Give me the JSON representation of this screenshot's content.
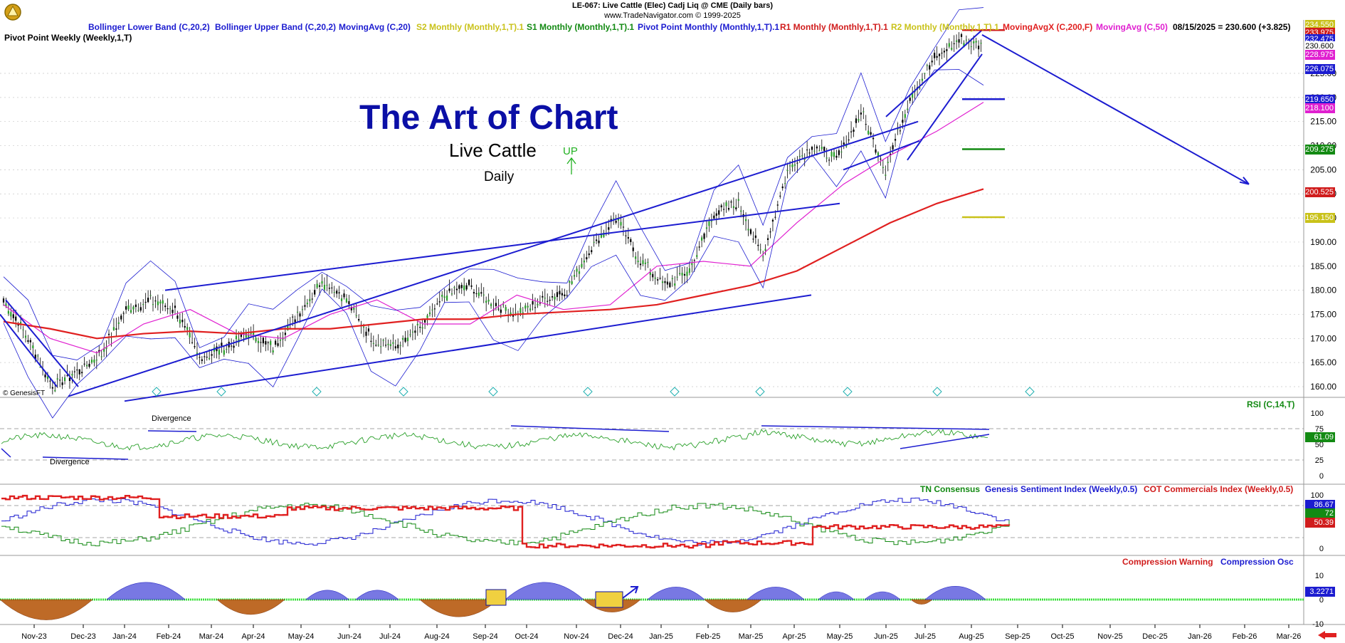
{
  "header": {
    "line1": "LE-067:  Live Cattle (Elec) Cadj Liq @ CME  (Daily bars)",
    "line2": "www.TradeNavigator.com © 1999-2025"
  },
  "title": {
    "main": "The Art of Chart",
    "market": "Live Cattle",
    "period": "Daily",
    "signal": "UP"
  },
  "legend": [
    {
      "text": "Bollinger Lower Band (C,20,2)",
      "color": "#1c1cd0"
    },
    {
      "text": "Bollinger Upper Band (C,20,2)",
      "color": "#1c1cd0"
    },
    {
      "text": "MovingAvg (C,20)",
      "color": "#1c1cd0"
    },
    {
      "text": "S2 Monthly (Monthly,1,T).1",
      "color": "#c9c21a"
    },
    {
      "text": "S1 Monthly (Monthly,1,T).1",
      "color": "#138a13"
    },
    {
      "text": "Pivot Point Monthly (Monthly,1,T).1",
      "color": "#1c1cd0"
    },
    {
      "text": "R1 Monthly (Monthly,1,T).1",
      "color": "#d01c1c"
    },
    {
      "text": "R2 Monthly (Monthly,1,T).1",
      "color": "#c9c21a"
    },
    {
      "text": "MovingAvgX (C,200,F)",
      "color": "#e02020"
    },
    {
      "text": "MovingAvg (C,50)",
      "color": "#e020d0"
    },
    {
      "text": "08/15/2025 = 230.600 (+3.825)",
      "color": "#000000"
    }
  ],
  "legend2": {
    "text": "Pivot Point Weekly (Weekly,1,T)",
    "color": "#c020c0"
  },
  "copyright": "© GenesisFT",
  "colors": {
    "navy": "#0b0fa6",
    "line_blue": "#1c1cd0",
    "red_ma": "#e02020",
    "pink_ma": "#e020d0",
    "green": "#138a13",
    "yellow": "#c9c21a",
    "orange_hist": "#b85a10",
    "blue_hist": "#2020c0"
  },
  "price_boxes": [
    {
      "label": "234.550",
      "bg": "#c9c21a"
    },
    {
      "label": "233.975",
      "bg": "#d01c1c"
    },
    {
      "label": "232.475",
      "bg": "#1c1cd0"
    },
    {
      "label": "230.600",
      "bg": "#ffffff",
      "fg": "#000000"
    },
    {
      "label": "228.975",
      "bg": "#e020d0"
    },
    {
      "label": "226.075",
      "bg": "#1c1cd0"
    },
    {
      "label": "219.650",
      "bg": "#1c1cd0"
    },
    {
      "label": "218.100",
      "bg": "#e020d0"
    },
    {
      "label": "209.275",
      "bg": "#138a13"
    },
    {
      "label": "200.525",
      "bg": "#d01c1c"
    },
    {
      "label": "195.150",
      "bg": "#c9c21a"
    }
  ],
  "annotations": {
    "divergence_top": "Divergence",
    "divergence_bottom": "Divergence"
  },
  "panels": {
    "rsi": {
      "label": "RSI (C,14,T)",
      "value": "61.09",
      "ticks": [
        "100",
        "75",
        "50",
        "25",
        "0"
      ]
    },
    "sentiment": {
      "labels": [
        {
          "text": "TN Consensus",
          "color": "#138a13"
        },
        {
          "text": "Genesis Sentiment Index (Weekly,0.5)",
          "color": "#1c1cd0"
        },
        {
          "text": "COT Commercials Index (Weekly,0.5)",
          "color": "#d01c1c"
        }
      ],
      "values": [
        {
          "text": "86.67",
          "bg": "#1c1cd0"
        },
        {
          "text": "72",
          "bg": "#138a13"
        },
        {
          "text": "50.39",
          "bg": "#d01c1c"
        }
      ],
      "ticks": [
        "100",
        "50",
        "0"
      ]
    },
    "compression": {
      "labels": [
        {
          "text": "Compression Warning",
          "color": "#d01c1c"
        },
        {
          "text": "Compression Osc",
          "color": "#1c1cd0"
        }
      ],
      "value": "3.2271",
      "ticks": [
        "10",
        "0",
        "-10"
      ]
    }
  },
  "chart_data": {
    "type": "candlestick",
    "title": "The Art of Chart",
    "ylim": [
      158,
      236
    ],
    "y_ticks": [
      160,
      165,
      170,
      175,
      180,
      185,
      190,
      195,
      200,
      205,
      210,
      215,
      220,
      225
    ],
    "x_ticks": [
      "Nov-23",
      "Dec-23",
      "Jan-24",
      "Feb-24",
      "Mar-24",
      "Apr-24",
      "May-24",
      "Jun-24",
      "Jul-24",
      "Aug-24",
      "Sep-24",
      "Oct-24",
      "Nov-24",
      "Dec-24",
      "Jan-25",
      "Feb-25",
      "Mar-25",
      "Apr-25",
      "May-25",
      "Jun-25",
      "Jul-25",
      "Aug-25",
      "Sep-25",
      "Oct-25",
      "Nov-25",
      "Dec-25",
      "Jan-26",
      "Feb-26",
      "Mar-26"
    ],
    "last_close": 230.6,
    "change": 3.825,
    "close_path": [
      [
        "Nov-23",
        178
      ],
      [
        "Nov-23",
        170
      ],
      [
        "Dec-23",
        160
      ],
      [
        "Dec-23",
        163
      ],
      [
        "Jan-24",
        167
      ],
      [
        "Feb-24",
        176
      ],
      [
        "Mar-24",
        178
      ],
      [
        "Mar-24",
        176
      ],
      [
        "Apr-24",
        166
      ],
      [
        "Apr-24",
        168
      ],
      [
        "May-24",
        171
      ],
      [
        "May-24",
        168
      ],
      [
        "Jun-24",
        175
      ],
      [
        "Jul-24",
        182
      ],
      [
        "Jul-24",
        178
      ],
      [
        "Aug-24",
        170
      ],
      [
        "Aug-24",
        168
      ],
      [
        "Sep-24",
        172
      ],
      [
        "Sep-24",
        179
      ],
      [
        "Oct-24",
        181
      ],
      [
        "Oct-24",
        177
      ],
      [
        "Nov-24",
        175
      ],
      [
        "Dec-24",
        178
      ],
      [
        "Dec-24",
        180
      ],
      [
        "Jan-25",
        189
      ],
      [
        "Jan-25",
        195
      ],
      [
        "Feb-25",
        186
      ],
      [
        "Feb-25",
        181
      ],
      [
        "Mar-25",
        184
      ],
      [
        "Mar-25",
        196
      ],
      [
        "Apr-25",
        198
      ],
      [
        "Apr-25",
        187
      ],
      [
        "May-25",
        205
      ],
      [
        "May-25",
        210
      ],
      [
        "Jun-25",
        207
      ],
      [
        "Jun-25",
        217
      ],
      [
        "Jul-25",
        205
      ],
      [
        "Jul-25",
        220
      ],
      [
        "Aug-25",
        228
      ],
      [
        "Aug-25",
        232
      ],
      [
        "Aug-25",
        230.6
      ]
    ],
    "series": [
      {
        "name": "MovingAvgX (C,200,F)",
        "values": [
          [
            0,
            173.5
          ],
          [
            1,
            172
          ],
          [
            2,
            170
          ],
          [
            3,
            171
          ],
          [
            4,
            171.5
          ],
          [
            5,
            171
          ],
          [
            6,
            172
          ],
          [
            7,
            172
          ],
          [
            8,
            173
          ],
          [
            9,
            174
          ],
          [
            10,
            174
          ],
          [
            11,
            175
          ],
          [
            12,
            175.5
          ],
          [
            13,
            176
          ],
          [
            14,
            177
          ],
          [
            15,
            179
          ],
          [
            16,
            181
          ],
          [
            17,
            184
          ],
          [
            18,
            189
          ],
          [
            19,
            194
          ],
          [
            20,
            198
          ],
          [
            21,
            201
          ]
        ]
      },
      {
        "name": "MovingAvg (C,50)",
        "values": [
          [
            0,
            177
          ],
          [
            1,
            170
          ],
          [
            2,
            167
          ],
          [
            3,
            173
          ],
          [
            4,
            176
          ],
          [
            5,
            171
          ],
          [
            6,
            170
          ],
          [
            7,
            175
          ],
          [
            8,
            178
          ],
          [
            9,
            173
          ],
          [
            10,
            173
          ],
          [
            11,
            179
          ],
          [
            12,
            176
          ],
          [
            13,
            177
          ],
          [
            14,
            185
          ],
          [
            15,
            186
          ],
          [
            16,
            185
          ],
          [
            17,
            194
          ],
          [
            18,
            202
          ],
          [
            19,
            208
          ],
          [
            20,
            213
          ],
          [
            21,
            219
          ]
        ]
      }
    ],
    "pivot_levels": [
      {
        "name": "R2 Monthly",
        "value": 234.55
      },
      {
        "name": "R1 Monthly",
        "value": 233.975
      },
      {
        "name": "Pivot Point Monthly",
        "value": 219.65
      },
      {
        "name": "S1 Monthly",
        "value": 209.275
      },
      {
        "name": "S2 Monthly",
        "value": 195.15
      }
    ]
  }
}
